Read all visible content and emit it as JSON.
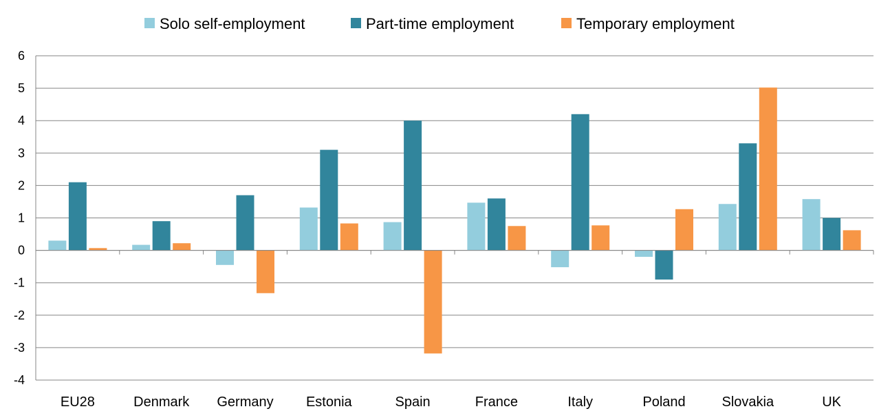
{
  "chart_data": {
    "type": "bar",
    "title": "",
    "xlabel": "",
    "ylabel": "",
    "ylim": [
      -4,
      6
    ],
    "yticks": [
      6,
      5,
      4,
      3,
      2,
      1,
      0,
      -1,
      -2,
      -3,
      -4
    ],
    "grid": true,
    "legend_position": "top",
    "categories": [
      "EU28",
      "Denmark",
      "Germany",
      "Estonia",
      "Spain",
      "France",
      "Italy",
      "Poland",
      "Slovakia",
      "UK"
    ],
    "series": [
      {
        "name": "Solo self-employment",
        "color": "#93cddd",
        "values": [
          0.3,
          0.17,
          -0.45,
          1.32,
          0.87,
          1.47,
          -0.52,
          -0.2,
          1.43,
          1.58
        ]
      },
      {
        "name": "Part-time employment",
        "color": "#31859c",
        "values": [
          2.1,
          0.9,
          1.7,
          3.1,
          4.0,
          1.6,
          4.2,
          -0.9,
          3.3,
          1.0
        ]
      },
      {
        "name": "Temporary employment",
        "color": "#f79646",
        "values": [
          0.07,
          0.22,
          -1.32,
          0.83,
          -3.18,
          0.75,
          0.77,
          1.27,
          5.02,
          0.62
        ]
      }
    ]
  }
}
